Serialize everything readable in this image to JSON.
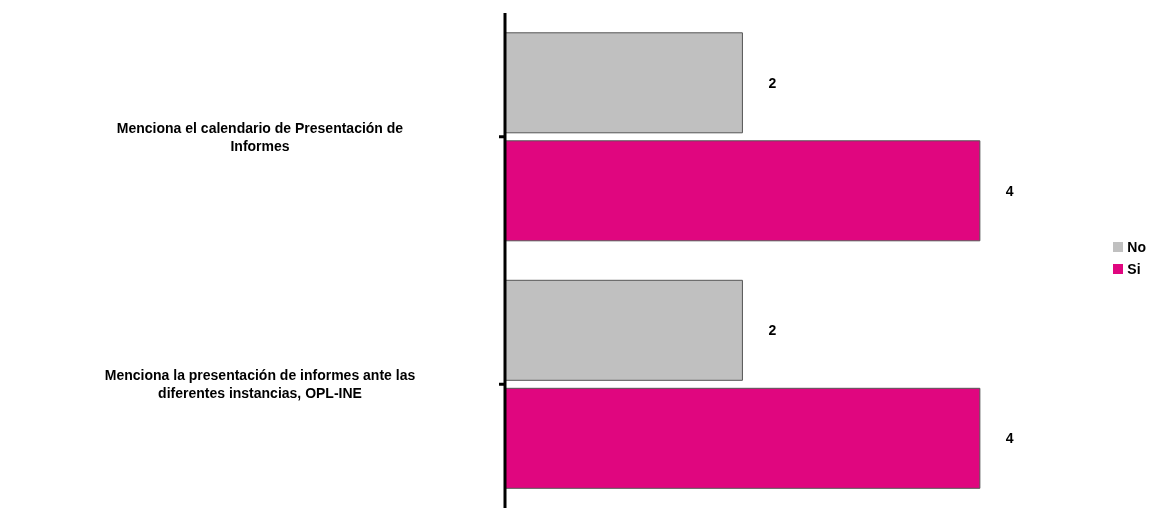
{
  "chart_data": {
    "type": "bar",
    "orientation": "horizontal",
    "categories": [
      "Menciona el calendario de Presentación de Informes",
      "Menciona la presentación de informes ante las diferentes instancias, OPL-INE"
    ],
    "series": [
      {
        "name": "No",
        "color": "#c0c0c0",
        "values": [
          2,
          2
        ]
      },
      {
        "name": "Si",
        "color": "#e0067f",
        "values": [
          4,
          4
        ]
      }
    ],
    "data_labels": true,
    "legend": "right",
    "grid": false
  }
}
